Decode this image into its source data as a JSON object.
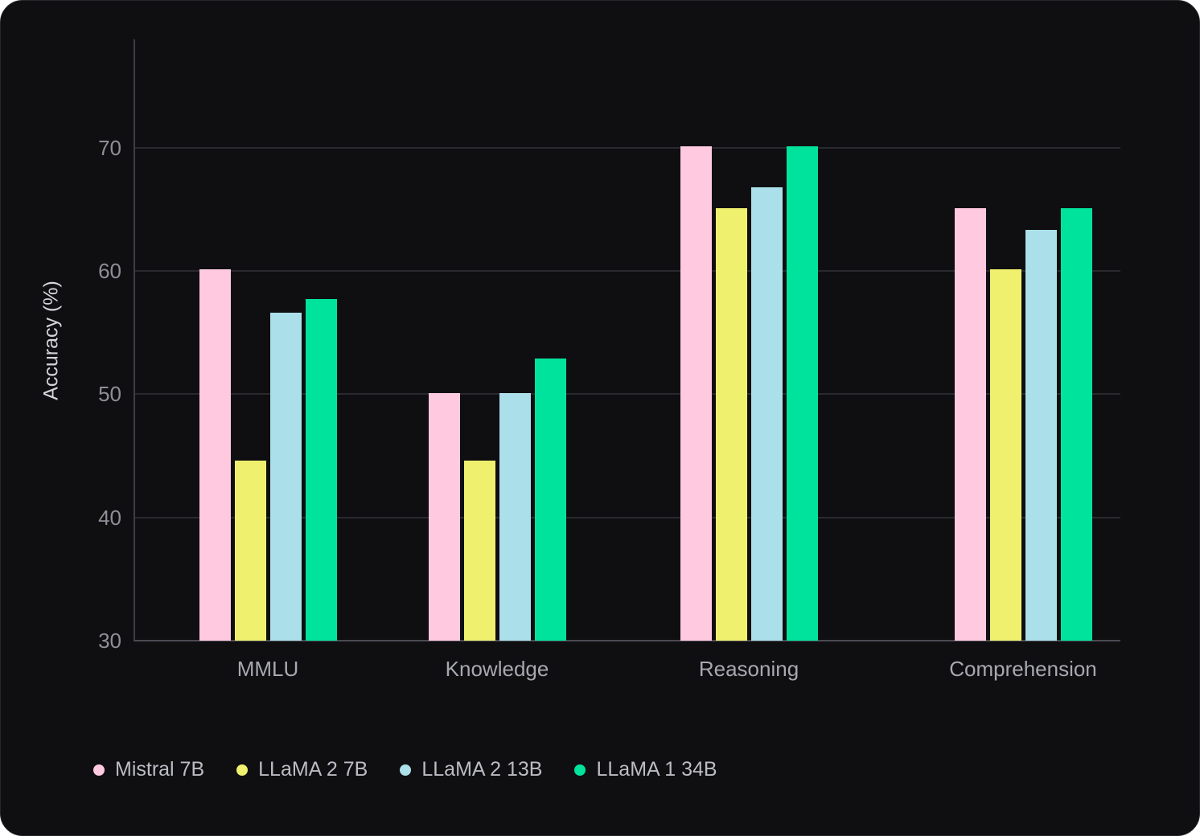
{
  "chart_data": {
    "type": "bar",
    "title": "",
    "xlabel": "",
    "ylabel": "Accuracy (%)",
    "categories": [
      "MMLU",
      "Knowledge",
      "Reasoning",
      "Comprehension"
    ],
    "series": [
      {
        "name": "Mistral 7B",
        "color": "#ffc9df",
        "values": [
          60.1,
          50.1,
          70.1,
          65.1
        ]
      },
      {
        "name": "LLaMA 2 7B",
        "color": "#eef06e",
        "values": [
          44.6,
          44.6,
          65.1,
          60.1
        ]
      },
      {
        "name": "LLaMA 2 13B",
        "color": "#abdfe9",
        "values": [
          56.6,
          50.1,
          66.8,
          63.3
        ]
      },
      {
        "name": "LLaMA 1 34B",
        "color": "#00e39c",
        "values": [
          57.7,
          52.9,
          70.1,
          65.1
        ]
      }
    ],
    "y_ticks": [
      30,
      40,
      50,
      60,
      70
    ],
    "ylim": [
      30,
      78.8
    ],
    "grid": true,
    "legend_position": "bottom-left"
  },
  "colors": {
    "background": "#0f0f11",
    "gridline": "#2a2a2e",
    "axis_line": "#4a4a51",
    "tick_text": "#8f8f98",
    "category_text": "#a8a8b1",
    "legend_text": "#bcbcc5",
    "axis_title_text": "#d4d4da"
  }
}
